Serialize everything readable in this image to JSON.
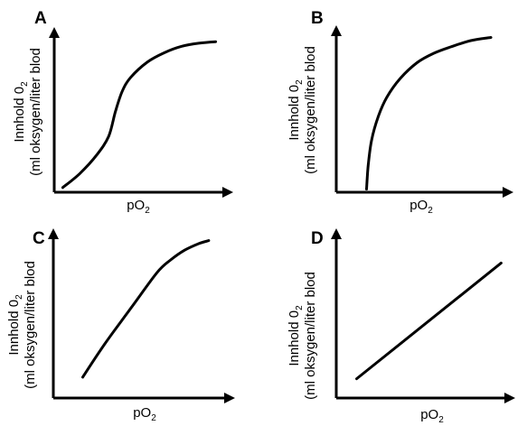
{
  "chart_data": [
    {
      "type": "line",
      "panel": "A",
      "title": "",
      "xlabel_main": "pO",
      "xlabel_sub": "2",
      "ylabel_line1_main": "Innhold 0",
      "ylabel_line1_sub": "2",
      "ylabel_line2": "(ml oksygen/liter blod",
      "shape": "sigmoid",
      "series": [
        {
          "x": [
            0.05,
            0.15,
            0.25,
            0.32,
            0.36,
            0.4,
            0.45,
            0.55,
            0.65,
            0.75,
            0.85,
            0.95
          ],
          "values": [
            0.03,
            0.12,
            0.24,
            0.36,
            0.52,
            0.65,
            0.74,
            0.84,
            0.9,
            0.94,
            0.96,
            0.97
          ]
        }
      ]
    },
    {
      "type": "line",
      "panel": "B",
      "title": "",
      "xlabel_main": "pO",
      "xlabel_sub": "2",
      "ylabel_line1_main": "Innhold 0",
      "ylabel_line1_sub": "2",
      "ylabel_line2": "(ml oksygen/liter blod",
      "shape": "hyperbolic",
      "series": [
        {
          "x": [
            0.18,
            0.19,
            0.21,
            0.25,
            0.3,
            0.38,
            0.48,
            0.58,
            0.68,
            0.8,
            0.92
          ],
          "values": [
            0.02,
            0.17,
            0.33,
            0.48,
            0.6,
            0.72,
            0.82,
            0.88,
            0.92,
            0.96,
            0.98
          ]
        }
      ]
    },
    {
      "type": "line",
      "panel": "C",
      "title": "",
      "xlabel_main": "pO",
      "xlabel_sub": "2",
      "ylabel_line1_main": "Innhold 0",
      "ylabel_line1_sub": "2",
      "ylabel_line2": "(ml oksygen/liter blod",
      "shape": "linear-then-saturating",
      "series": [
        {
          "x": [
            0.17,
            0.3,
            0.45,
            0.6,
            0.68,
            0.76,
            0.84,
            0.9
          ],
          "values": [
            0.13,
            0.34,
            0.56,
            0.78,
            0.86,
            0.92,
            0.96,
            0.98
          ]
        }
      ]
    },
    {
      "type": "line",
      "panel": "D",
      "title": "",
      "xlabel_main": "pO",
      "xlabel_sub": "2",
      "ylabel_line1_main": "Innhold 0",
      "ylabel_line1_sub": "2",
      "ylabel_line2": "(ml oksygen/liter blod",
      "shape": "linear",
      "series": [
        {
          "x": [
            0.12,
            0.97
          ],
          "values": [
            0.12,
            0.84
          ]
        }
      ]
    }
  ]
}
